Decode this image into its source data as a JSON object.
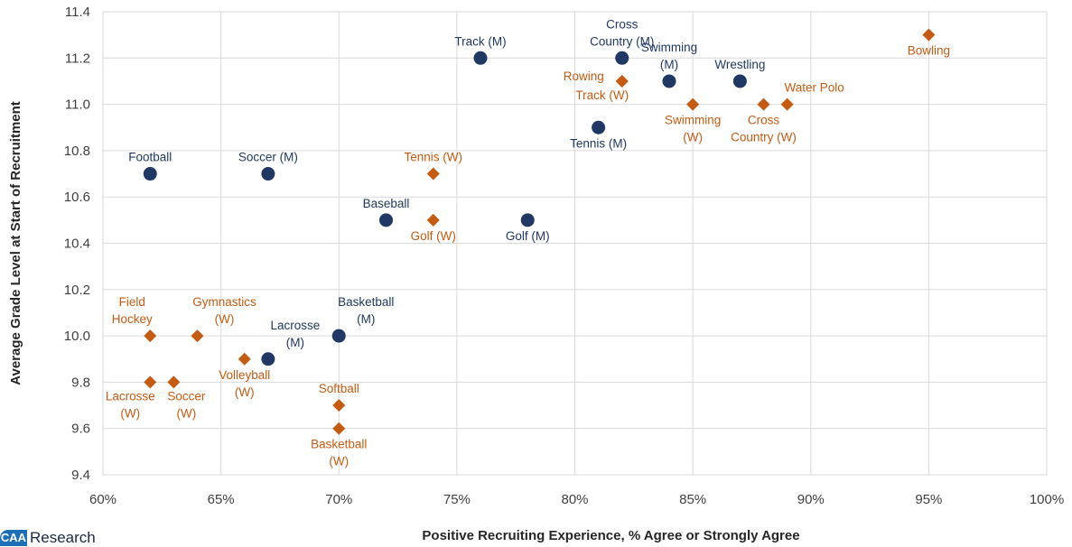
{
  "chart_data": {
    "type": "scatter",
    "title": "",
    "xlabel": "Positive Recruiting Experience, % Agree or Strongly Agree",
    "ylabel": "Average Grade Level at Start of Recruitment",
    "xlim": [
      0.6,
      1.0
    ],
    "ylim": [
      9.4,
      11.4
    ],
    "x_ticks": [
      0.6,
      0.65,
      0.7,
      0.75,
      0.8,
      0.85,
      0.9,
      0.95,
      1.0
    ],
    "x_tick_labels": [
      "60%",
      "65%",
      "70%",
      "75%",
      "80%",
      "85%",
      "90%",
      "95%",
      "100%"
    ],
    "y_ticks": [
      9.4,
      9.6,
      9.8,
      10.0,
      10.2,
      10.4,
      10.6,
      10.8,
      11.0,
      11.2,
      11.4
    ],
    "y_tick_labels": [
      "9.4",
      "9.6",
      "9.8",
      "10.0",
      "10.2",
      "10.4",
      "10.6",
      "10.8",
      "11.0",
      "11.2",
      "11.4"
    ],
    "grid": true,
    "legend": "none",
    "series": [
      {
        "marker": "circle",
        "color": "#1f3864",
        "points": [
          {
            "label": [
              "Football"
            ],
            "x": 0.62,
            "y": 10.7,
            "pos": "above"
          },
          {
            "label": [
              "Soccer (M)"
            ],
            "x": 0.67,
            "y": 10.7,
            "pos": "above"
          },
          {
            "label": [
              "Baseball"
            ],
            "x": 0.72,
            "y": 10.5,
            "pos": "above"
          },
          {
            "label": [
              "Track (M)"
            ],
            "x": 0.76,
            "y": 11.2,
            "pos": "above"
          },
          {
            "label": [
              "Golf (M)"
            ],
            "x": 0.78,
            "y": 10.5,
            "pos": "below"
          },
          {
            "label": [
              "Tennis (M)"
            ],
            "x": 0.81,
            "y": 10.9,
            "pos": "below"
          },
          {
            "label": [
              "Cross",
              "Country (M)"
            ],
            "x": 0.82,
            "y": 11.2,
            "pos": "above"
          },
          {
            "label": [
              "Swimming",
              "(M)"
            ],
            "x": 0.84,
            "y": 11.1,
            "pos": "above"
          },
          {
            "label": [
              "Wrestling"
            ],
            "x": 0.87,
            "y": 11.1,
            "pos": "above"
          },
          {
            "label": [
              "Lacrosse",
              "(M)"
            ],
            "x": 0.67,
            "y": 9.9,
            "pos": "above-right"
          },
          {
            "label": [
              "Basketball",
              "(M)"
            ],
            "x": 0.7,
            "y": 10.0,
            "pos": "above-right"
          }
        ]
      },
      {
        "marker": "diamond",
        "color": "#c55a11",
        "points": [
          {
            "label": [
              "Field",
              "Hockey"
            ],
            "x": 0.62,
            "y": 10.0,
            "pos": "above-left"
          },
          {
            "label": [
              "Gymnastics",
              "(W)"
            ],
            "x": 0.64,
            "y": 10.0,
            "pos": "above-right"
          },
          {
            "label": [
              "Lacrosse",
              "(W)"
            ],
            "x": 0.62,
            "y": 9.8,
            "pos": "below-left"
          },
          {
            "label": [
              "Soccer",
              "(W)"
            ],
            "x": 0.63,
            "y": 9.8,
            "pos": "below-right"
          },
          {
            "label": [
              "Volleyball",
              "(W)"
            ],
            "x": 0.66,
            "y": 9.9,
            "pos": "below"
          },
          {
            "label": [
              "Softball"
            ],
            "x": 0.7,
            "y": 9.7,
            "pos": "above"
          },
          {
            "label": [
              "Basketball",
              "(W)"
            ],
            "x": 0.7,
            "y": 9.6,
            "pos": "below"
          },
          {
            "label": [
              "Tennis (W)"
            ],
            "x": 0.74,
            "y": 10.7,
            "pos": "above"
          },
          {
            "label": [
              "Golf (W)"
            ],
            "x": 0.74,
            "y": 10.5,
            "pos": "below"
          },
          {
            "label": [
              "Rowing"
            ],
            "x": 0.82,
            "y": 11.1,
            "pos": "left"
          },
          {
            "label": [
              "Track (W)"
            ],
            "x": 0.82,
            "y": 11.1,
            "pos": "below-left"
          },
          {
            "label": [
              "Swimming",
              "(W)"
            ],
            "x": 0.85,
            "y": 11.0,
            "pos": "below"
          },
          {
            "label": [
              "Cross",
              "Country (W)"
            ],
            "x": 0.88,
            "y": 11.0,
            "pos": "below"
          },
          {
            "label": [
              "Water Polo"
            ],
            "x": 0.89,
            "y": 11.0,
            "pos": "above-right"
          },
          {
            "label": [
              "Bowling"
            ],
            "x": 0.95,
            "y": 11.3,
            "pos": "below"
          }
        ]
      }
    ]
  },
  "logo": {
    "mark": "CAA",
    "word": "Research"
  }
}
